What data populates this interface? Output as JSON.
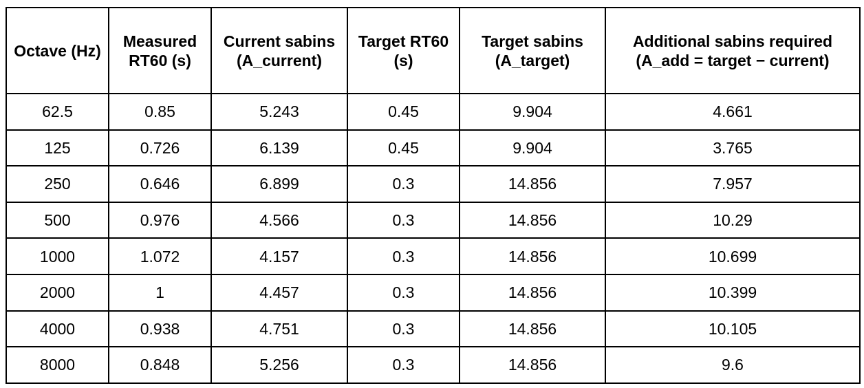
{
  "table": {
    "header": [
      "Octave (Hz)",
      "Measured RT60 (s)",
      "Current sabins (A_current)",
      "Target RT60 (s)",
      "Target sabins (A_target)",
      "Additional sabins required (A_add = target − current)"
    ],
    "rows": [
      [
        "62.5",
        "0.85",
        "5.243",
        "0.45",
        "9.904",
        "4.661"
      ],
      [
        "125",
        "0.726",
        "6.139",
        "0.45",
        "9.904",
        "3.765"
      ],
      [
        "250",
        "0.646",
        "6.899",
        "0.3",
        "14.856",
        "7.957"
      ],
      [
        "500",
        "0.976",
        "4.566",
        "0.3",
        "14.856",
        "10.29"
      ],
      [
        "1000",
        "1.072",
        "4.157",
        "0.3",
        "14.856",
        "10.699"
      ],
      [
        "2000",
        "1",
        "4.457",
        "0.3",
        "14.856",
        "10.399"
      ],
      [
        "4000",
        "0.938",
        "4.751",
        "0.3",
        "14.856",
        "10.105"
      ],
      [
        "8000",
        "0.848",
        "5.256",
        "0.3",
        "14.856",
        "9.6"
      ]
    ]
  }
}
